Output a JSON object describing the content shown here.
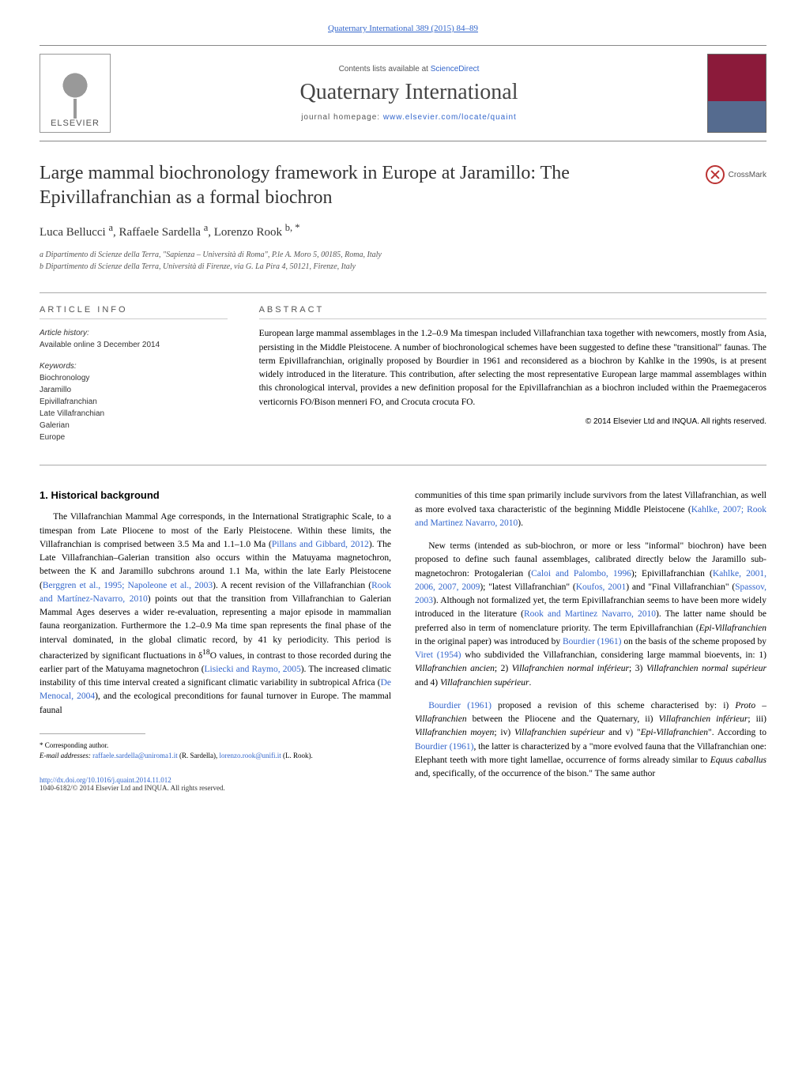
{
  "header": {
    "citation": "Quaternary International 389 (2015) 84–89",
    "scidirect_prefix": "Contents lists available at ",
    "scidirect_link": "ScienceDirect",
    "journal_title": "Quaternary International",
    "homepage_prefix": "journal homepage: ",
    "homepage_link": "www.elsevier.com/locate/quaint",
    "elsevier_label": "ELSEVIER",
    "crossmark_label": "CrossMark"
  },
  "article": {
    "title": "Large mammal biochronology framework in Europe at Jaramillo: The Epivillafranchian as a formal biochron",
    "authors_html": "Luca Bellucci <sup>a</sup>, Raffaele Sardella <sup>a</sup>, Lorenzo Rook <sup>b, *</sup>",
    "affiliations": [
      "a Dipartimento di Scienze della Terra, \"Sapienza – Università di Roma\", P.le A. Moro 5, 00185, Roma, Italy",
      "b Dipartimento di Scienze della Terra, Università di Firenze, via G. La Pira 4, 50121, Firenze, Italy"
    ]
  },
  "info": {
    "heading": "ARTICLE INFO",
    "history_label": "Article history:",
    "history_line": "Available online 3 December 2014",
    "keywords_label": "Keywords:",
    "keywords": [
      "Biochronology",
      "Jaramillo",
      "Epivillafranchian",
      "Late Villafranchian",
      "Galerian",
      "Europe"
    ]
  },
  "abstract": {
    "heading": "ABSTRACT",
    "text": "European large mammal assemblages in the 1.2–0.9 Ma timespan included Villafranchian taxa together with newcomers, mostly from Asia, persisting in the Middle Pleistocene. A number of biochronological schemes have been suggested to define these \"transitional\" faunas. The term Epivillafranchian, originally proposed by Bourdier in 1961 and reconsidered as a biochron by Kahlke in the 1990s, is at present widely introduced in the literature. This contribution, after selecting the most representative European large mammal assemblages within this chronological interval, provides a new definition proposal for the Epivillafranchian as a biochron included within the Praemegaceros verticornis FO/Bison menneri FO, and Crocuta crocuta FO.",
    "copyright": "© 2014 Elsevier Ltd and INQUA. All rights reserved."
  },
  "body": {
    "section_heading": "1. Historical background",
    "left_paragraphs": [
      "The Villafranchian Mammal Age corresponds, in the International Stratigraphic Scale, to a timespan from Late Pliocene to most of the Early Pleistocene. Within these limits, the Villafranchian is comprised between 3.5 Ma and 1.1–1.0 Ma (<span class=\"ref\">Pillans and Gibbard, 2012</span>). The Late Villafranchian–Galerian transition also occurs within the Matuyama magnetochron, between the K and Jaramillo subchrons around 1.1 Ma, within the late Early Pleistocene (<span class=\"ref\">Berggren et al., 1995; Napoleone et al., 2003</span>). A recent revision of the Villafranchian (<span class=\"ref\">Rook and Martínez-Navarro, 2010</span>) points out that the transition from Villafranchian to Galerian Mammal Ages deserves a wider re-evaluation, representing a major episode in mammalian fauna reorganization. Furthermore the 1.2–0.9 Ma time span represents the final phase of the interval dominated, in the global climatic record, by 41 ky periodicity. This period is characterized by significant fluctuations in δ<sup>18</sup>O values, in contrast to those recorded during the earlier part of the Matuyama magnetochron (<span class=\"ref\">Lisiecki and Raymo, 2005</span>). The increased climatic instability of this time interval created a significant climatic variability in subtropical Africa (<span class=\"ref\">De Menocal, 2004</span>), and the ecological preconditions for faunal turnover in Europe. The mammal faunal"
    ],
    "right_paragraphs": [
      "communities of this time span primarily include survivors from the latest Villafranchian, as well as more evolved taxa characteristic of the beginning Middle Pleistocene (<span class=\"ref\">Kahlke, 2007; Rook and Martinez Navarro, 2010</span>).",
      "New terms (intended as sub-biochron, or more or less \"informal\" biochron) have been proposed to define such faunal assemblages, calibrated directly below the Jaramillo sub-magnetochron: Protogalerian (<span class=\"ref\">Caloi and Palombo, 1996</span>); Epivillafranchian (<span class=\"ref\">Kahlke, 2001, 2006, 2007, 2009</span>); \"latest Villafranchian\" (<span class=\"ref\">Koufos, 2001</span>) and \"Final Villafranchian\" (<span class=\"ref\">Spassov, 2003</span>). Although not formalized yet, the term Epivillafranchian seems to have been more widely introduced in the literature (<span class=\"ref\">Rook and Martinez Navarro, 2010</span>). The latter name should be preferred also in term of nomenclature priority. The term Epivillafranchian (<i>Epi-Villafranchien</i> in the original paper) was introduced by <span class=\"ref\">Bourdier (1961)</span> on the basis of the scheme proposed by <span class=\"ref\">Viret (1954)</span> who subdivided the Villafranchian, considering large mammal bioevents, in: 1) <i>Villafranchien ancien</i>; 2) <i>Villafranchien normal inférieur</i>; 3) <i>Villafranchien normal supérieur</i> and 4) <i>Villafranchien supérieur</i>.",
      "<span class=\"ref\">Bourdier (1961)</span> proposed a revision of this scheme characterised by: i) <i>Proto – Villafranchien</i> between the Pliocene and the Quaternary, ii) <i>Villafranchien inférieur</i>; iii) <i>Villafranchien moyen</i>; iv) <i>Villafranchien supérieur</i> and v) \"<i>Epi-Villafranchien</i>\". According to <span class=\"ref\">Bourdier (1961)</span>, the latter is characterized by a \"more evolved fauna that the Villafranchian one: Elephant teeth with more tight lamellae, occurrence of forms already similar to <i>Equus caballus</i> and, specifically, of the occurrence of the bison.\" The same author"
    ]
  },
  "footnote": {
    "corresponding": "* Corresponding author.",
    "emails_label": "E-mail addresses: ",
    "email1": "raffaele.sardella@uniroma1.it",
    "email1_who": " (R. Sardella), ",
    "email2": "lorenzo.rook@unifi.it",
    "email2_who": " (L. Rook)."
  },
  "footer": {
    "doi": "http://dx.doi.org/10.1016/j.quaint.2014.11.012",
    "issn_copy": "1040-6182/© 2014 Elsevier Ltd and INQUA. All rights reserved."
  },
  "colors": {
    "link": "#3366cc",
    "text": "#000000",
    "muted": "#555555",
    "border": "#aaaaaa",
    "cover_top": "#8b1a3a",
    "cover_bottom": "#556b8f"
  }
}
